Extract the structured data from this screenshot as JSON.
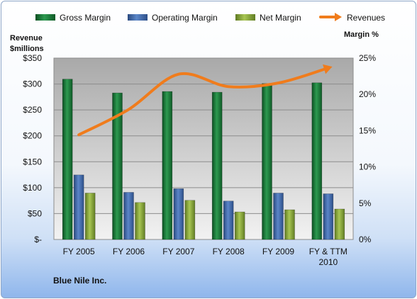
{
  "chart_data": {
    "type": "bar",
    "title": "",
    "company": "Blue Nile Inc.",
    "categories": [
      [
        "FY 2005"
      ],
      [
        "FY 2006"
      ],
      [
        "FY 2007"
      ],
      [
        "FY 2008"
      ],
      [
        "FY 2009"
      ],
      [
        "FY & TTM",
        "2010"
      ]
    ],
    "left_axis": {
      "title": [
        "Revenue",
        "$millions"
      ],
      "ylim": [
        0,
        350
      ],
      "ticks": [
        0,
        50,
        100,
        150,
        200,
        250,
        300,
        350
      ],
      "tick_labels": [
        "$-",
        "$50",
        "$100",
        "$150",
        "$200",
        "$250",
        "$300",
        "$350"
      ]
    },
    "right_axis": {
      "title": "Margin  %",
      "ylim": [
        0,
        25
      ],
      "ticks": [
        0,
        5,
        10,
        15,
        20,
        25
      ],
      "tick_labels": [
        "0%",
        "5%",
        "10%",
        "15%",
        "20%",
        "25%"
      ]
    },
    "series": [
      {
        "name": "Gross Margin",
        "kind": "bar",
        "axis": "right",
        "color": "#1a7a3a",
        "values": [
          22.1,
          20.2,
          20.4,
          20.3,
          21.5,
          21.6
        ]
      },
      {
        "name": "Operating Margin",
        "kind": "bar",
        "axis": "right",
        "color": "#3f67a8",
        "values": [
          8.9,
          6.5,
          7.0,
          5.3,
          6.4,
          6.3
        ]
      },
      {
        "name": "Net Margin",
        "kind": "bar",
        "axis": "right",
        "color": "#8fae3c",
        "values": [
          6.4,
          5.1,
          5.4,
          3.8,
          4.1,
          4.2
        ]
      },
      {
        "name": "Revenues",
        "kind": "line",
        "axis": "left",
        "color": "#f07c1c",
        "values": [
          202,
          251,
          319,
          295,
          302,
          331
        ]
      }
    ],
    "grid": true,
    "legend_position": "top"
  }
}
